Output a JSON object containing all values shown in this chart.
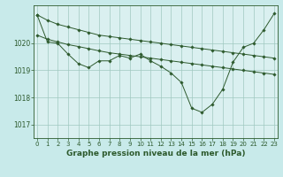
{
  "bg_color": "#c8eaea",
  "plot_bg_color": "#daf0f0",
  "grid_color": "#a0c8c0",
  "line_color": "#2d5a2d",
  "x_ticks": [
    0,
    1,
    2,
    3,
    4,
    5,
    6,
    7,
    8,
    9,
    10,
    11,
    12,
    13,
    14,
    15,
    16,
    17,
    18,
    19,
    20,
    21,
    22,
    23
  ],
  "y_ticks": [
    1017,
    1018,
    1019,
    1020
  ],
  "ylim": [
    1016.5,
    1021.4
  ],
  "xlim": [
    -0.3,
    23.3
  ],
  "xlabel": "Graphe pression niveau de la mer (hPa)",
  "series": [
    {
      "x": [
        0,
        1,
        2,
        3,
        4,
        5,
        6,
        7,
        8,
        9,
        10,
        11,
        12,
        13,
        14,
        15,
        16,
        17,
        18,
        19,
        20,
        21,
        22,
        23
      ],
      "y": [
        1021.05,
        1020.85,
        1020.7,
        1020.6,
        1020.5,
        1020.4,
        1020.3,
        1020.25,
        1020.2,
        1020.15,
        1020.1,
        1020.05,
        1020.0,
        1019.95,
        1019.9,
        1019.85,
        1019.8,
        1019.75,
        1019.7,
        1019.65,
        1019.6,
        1019.55,
        1019.5,
        1019.45
      ]
    },
    {
      "x": [
        0,
        1,
        2,
        3,
        4,
        5,
        6,
        7,
        8,
        9,
        10,
        11,
        12,
        13,
        14,
        15,
        16,
        17,
        18,
        19,
        20,
        21,
        22,
        23
      ],
      "y": [
        1020.3,
        1020.15,
        1020.05,
        1019.95,
        1019.88,
        1019.8,
        1019.72,
        1019.65,
        1019.6,
        1019.55,
        1019.5,
        1019.45,
        1019.4,
        1019.35,
        1019.3,
        1019.25,
        1019.2,
        1019.15,
        1019.1,
        1019.05,
        1019.0,
        1018.95,
        1018.9,
        1018.85
      ]
    },
    {
      "x": [
        0,
        1,
        2,
        3,
        4,
        5,
        6,
        7,
        8,
        9,
        10,
        11,
        12,
        13,
        14,
        15,
        16,
        17,
        18,
        19,
        20,
        21,
        22,
        23
      ],
      "y": [
        1021.05,
        1020.05,
        1020.0,
        1019.6,
        1019.25,
        1019.1,
        1019.35,
        1019.35,
        1019.55,
        1019.45,
        1019.6,
        1019.35,
        1019.15,
        1018.9,
        1018.55,
        1017.6,
        1017.45,
        1017.75,
        1018.3,
        1019.3,
        1019.85,
        1020.0,
        1020.5,
        1021.1
      ]
    }
  ],
  "xlabel_fontsize": 6.5,
  "tick_fontsize": 5.0,
  "ytick_fontsize": 5.5
}
